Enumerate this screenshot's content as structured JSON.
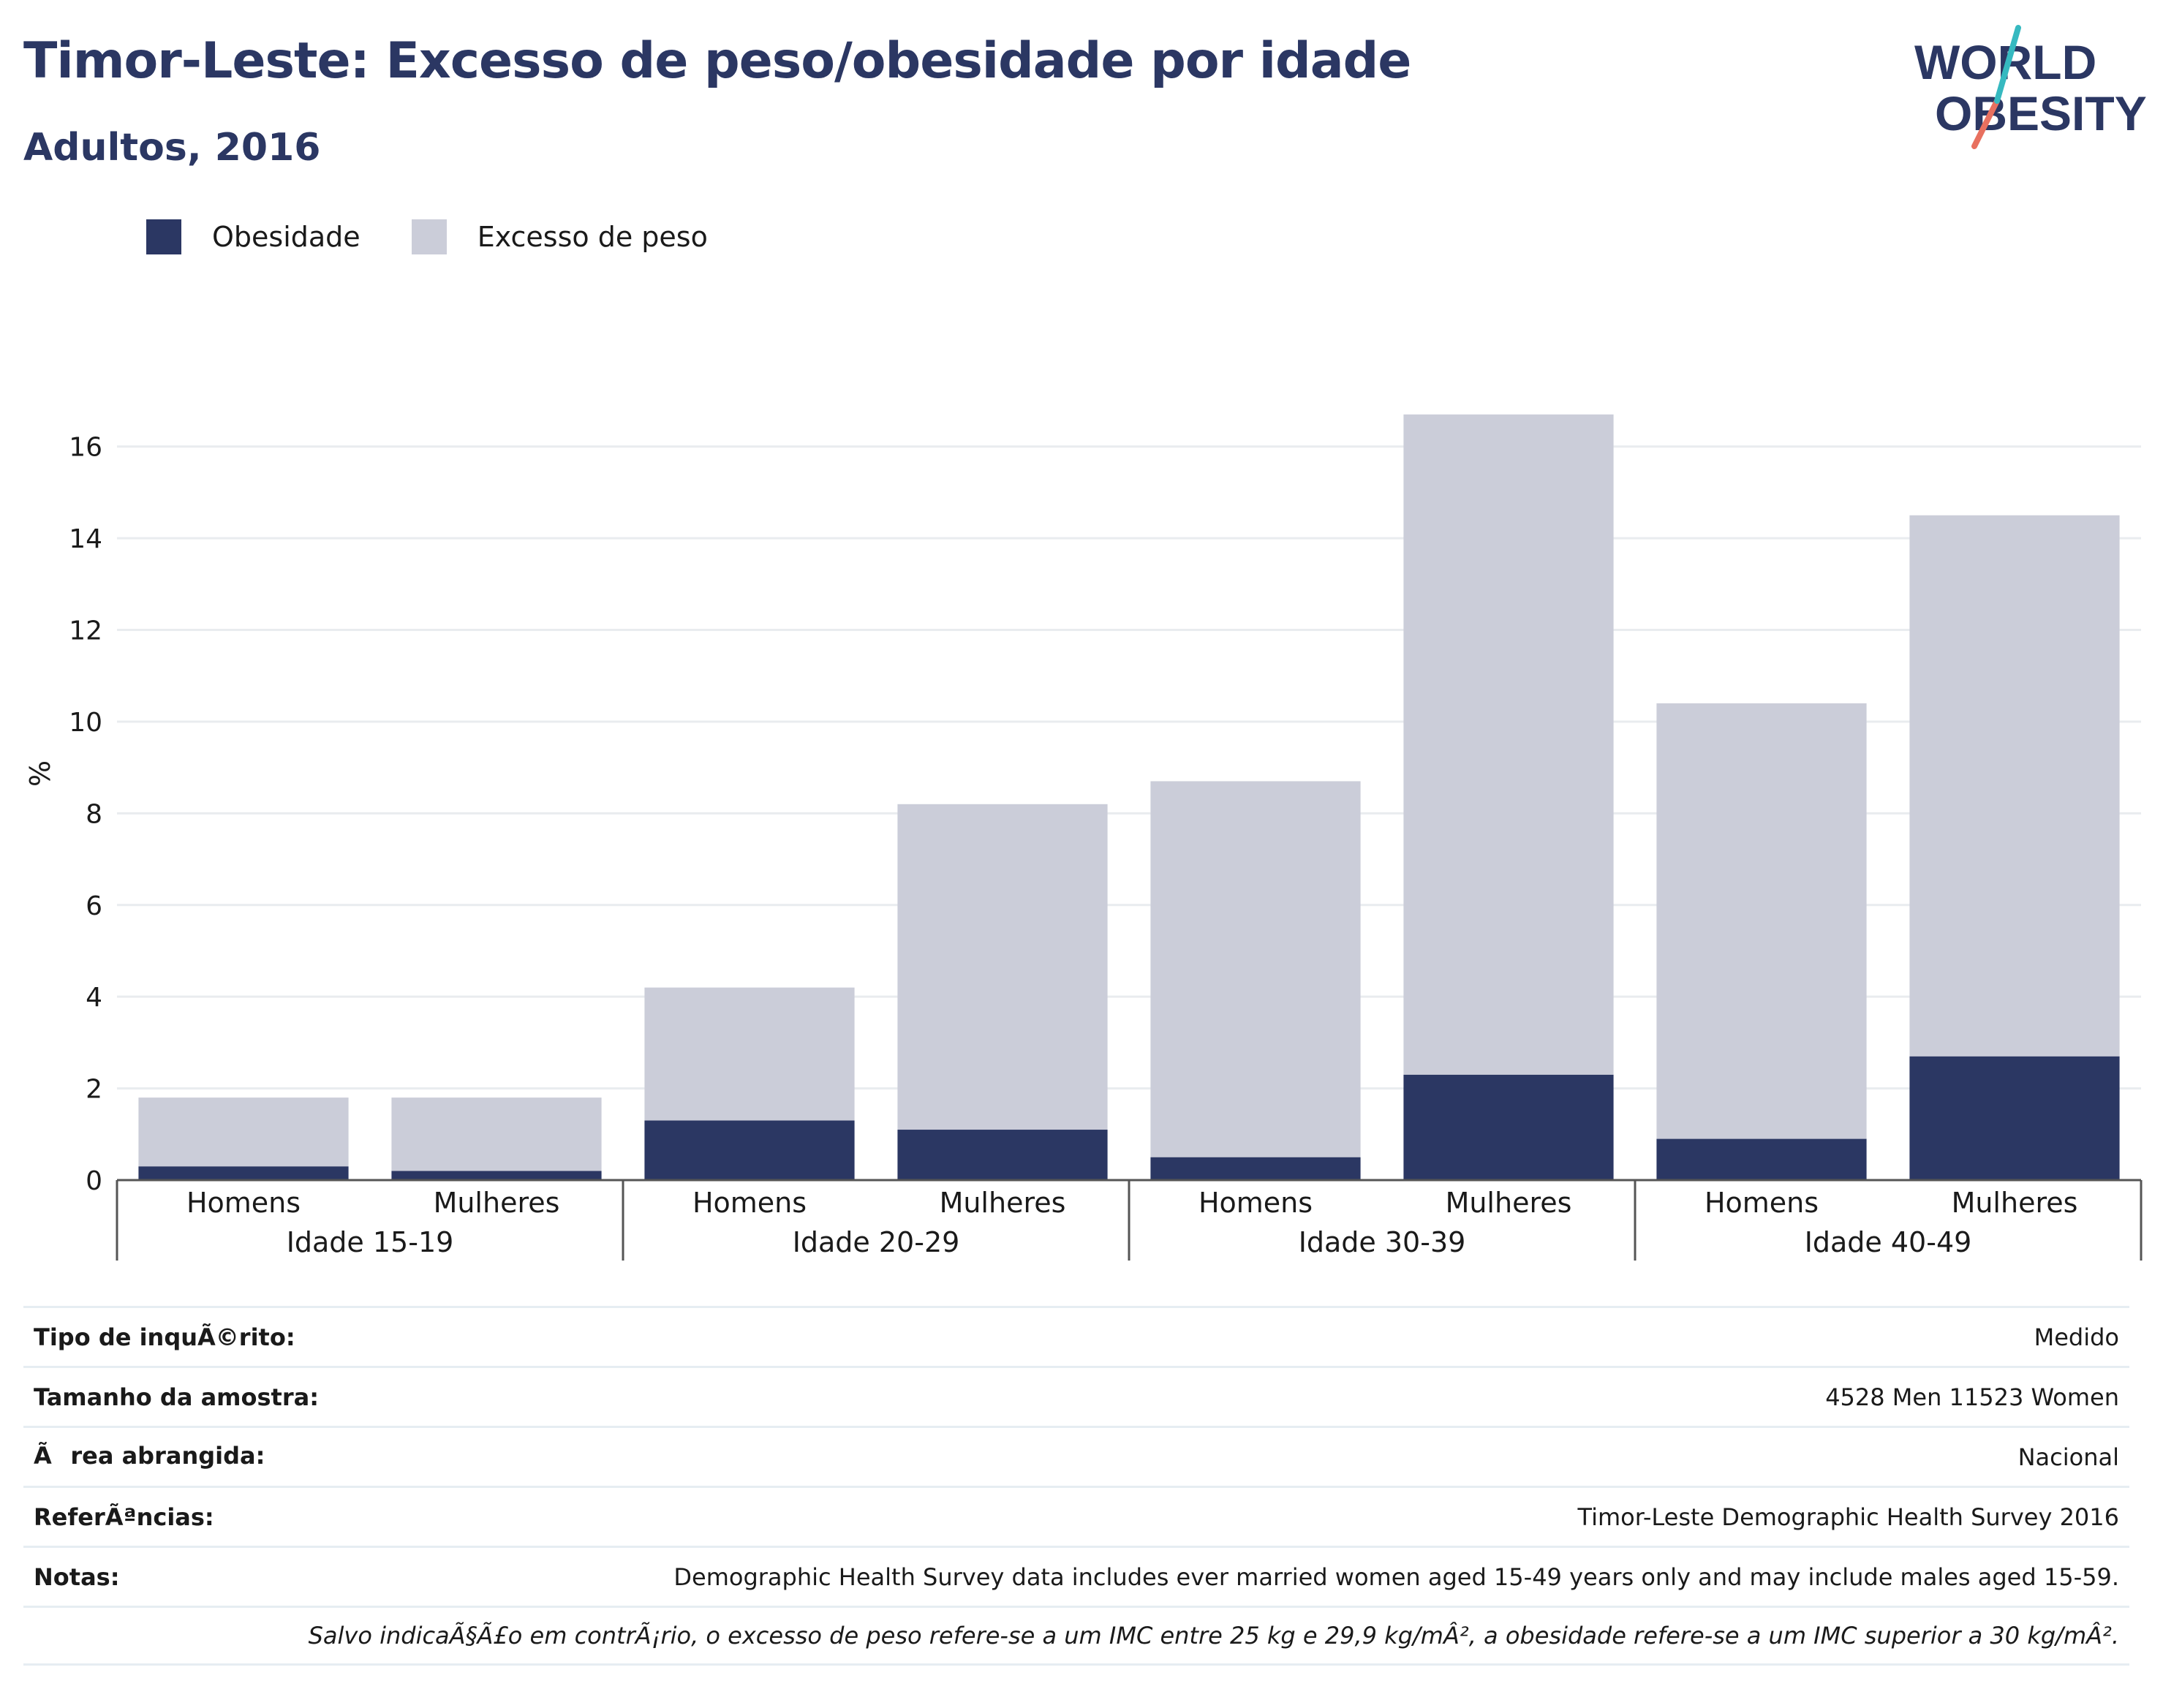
{
  "header": {
    "title": "Timor-Leste: Excesso de peso/obesidade por idade",
    "subtitle": "Adultos, 2016"
  },
  "logo": {
    "line1": "WORLD",
    "line2": "OBESITY",
    "text_color": "#2b3763",
    "accent_teal": "#36b9c0",
    "accent_coral": "#e8705f"
  },
  "legend": [
    {
      "label": "Obesidade",
      "color": "#2b3763"
    },
    {
      "label": "Excesso de peso",
      "color": "#cbcdd9"
    }
  ],
  "chart_data": {
    "type": "bar",
    "stacked": true,
    "ylabel": "%",
    "ylim": [
      0,
      17
    ],
    "yticks": [
      0,
      2,
      4,
      6,
      8,
      10,
      12,
      14,
      16
    ],
    "grid": true,
    "legend_position": "top-left",
    "groups": [
      "Idade 15-19",
      "Idade 20-29",
      "Idade 30-39",
      "Idade 40-49"
    ],
    "categories": [
      "Homens",
      "Mulheres",
      "Homens",
      "Mulheres",
      "Homens",
      "Mulheres",
      "Homens",
      "Mulheres"
    ],
    "series": [
      {
        "name": "Obesidade",
        "color": "#2b3763",
        "values": [
          0.3,
          0.2,
          1.3,
          1.1,
          0.5,
          2.3,
          0.9,
          2.7
        ]
      },
      {
        "name": "Excesso de peso",
        "color": "#cbcdd9",
        "values": [
          1.5,
          1.6,
          2.9,
          7.1,
          8.2,
          14.4,
          9.5,
          11.8
        ]
      }
    ]
  },
  "info_table": [
    {
      "label": "Tipo de inquÃ©rito:",
      "value": "Medido"
    },
    {
      "label": "Tamanho da amostra:",
      "value": "4528 Men 11523 Women"
    },
    {
      "label": "Ãrea abrangida:",
      "value": "Nacional"
    },
    {
      "label": "ReferÃªncias:",
      "value": "Timor-Leste Demographic Health Survey 2016"
    },
    {
      "label": "Notas:",
      "value": "Demographic Health Survey data includes ever married women aged 15-49 years only and may include males aged 15-59."
    }
  ],
  "footnote": "Salvo indicaÃ§Ã£o em contrÃ¡rio, o excesso de peso refere-se a um IMC entre 25 kg e 29,9 kg/mÂ², a obesidade refere-se a um IMC superior a 30 kg/mÂ²."
}
